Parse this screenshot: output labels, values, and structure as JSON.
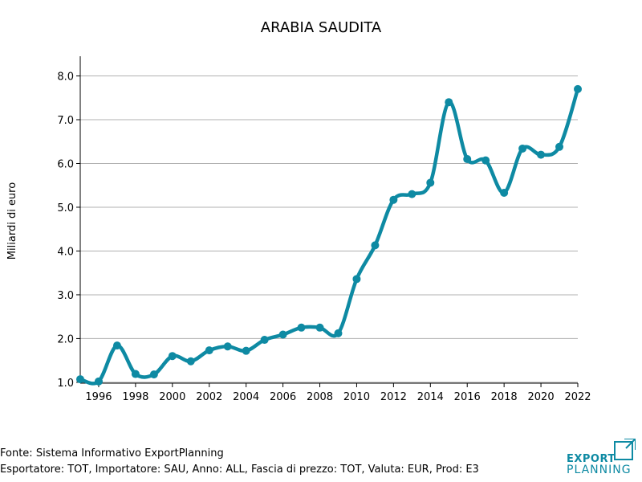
{
  "chart_data": {
    "type": "line",
    "title": "ARABIA SAUDITA",
    "ylabel": "Miliardi di euro",
    "xlabel": "",
    "x": [
      1995,
      1996,
      1997,
      1998,
      1999,
      2000,
      2001,
      2002,
      2003,
      2004,
      2005,
      2006,
      2007,
      2008,
      2009,
      2010,
      2011,
      2012,
      2013,
      2014,
      2015,
      2016,
      2017,
      2018,
      2019,
      2020,
      2021,
      2022
    ],
    "values": [
      1.07,
      1.02,
      1.84,
      1.19,
      1.18,
      1.6,
      1.48,
      1.73,
      1.82,
      1.72,
      1.97,
      2.09,
      2.25,
      2.25,
      2.12,
      3.36,
      4.13,
      5.17,
      5.3,
      5.56,
      7.4,
      6.1,
      6.07,
      5.33,
      6.34,
      6.2,
      6.38,
      7.7
    ],
    "xlim": [
      1995,
      2022
    ],
    "ylim": [
      0.98,
      8.45
    ],
    "x_ticks": [
      "1996",
      "1998",
      "2000",
      "2002",
      "2004",
      "2006",
      "2008",
      "2010",
      "2012",
      "2014",
      "2016",
      "2018",
      "2020",
      "2022"
    ],
    "y_ticks": [
      "1.0",
      "2.0",
      "3.0",
      "4.0",
      "5.0",
      "6.0",
      "7.0",
      "8.0"
    ],
    "grid": "horizontal",
    "line_color": "#0e8aa3",
    "grid_color": "#b0b0b0"
  },
  "footer": {
    "source": "Fonte: Sistema Informativo ExportPlanning",
    "details": "Esportatore: TOT, Importatore: SAU, Anno: ALL, Fascia di prezzo: TOT, Valuta: EUR, Prod: E3"
  },
  "logo": {
    "line1": "EXPORT",
    "line2": "PLANNING",
    "color": "#0e8aa3"
  }
}
